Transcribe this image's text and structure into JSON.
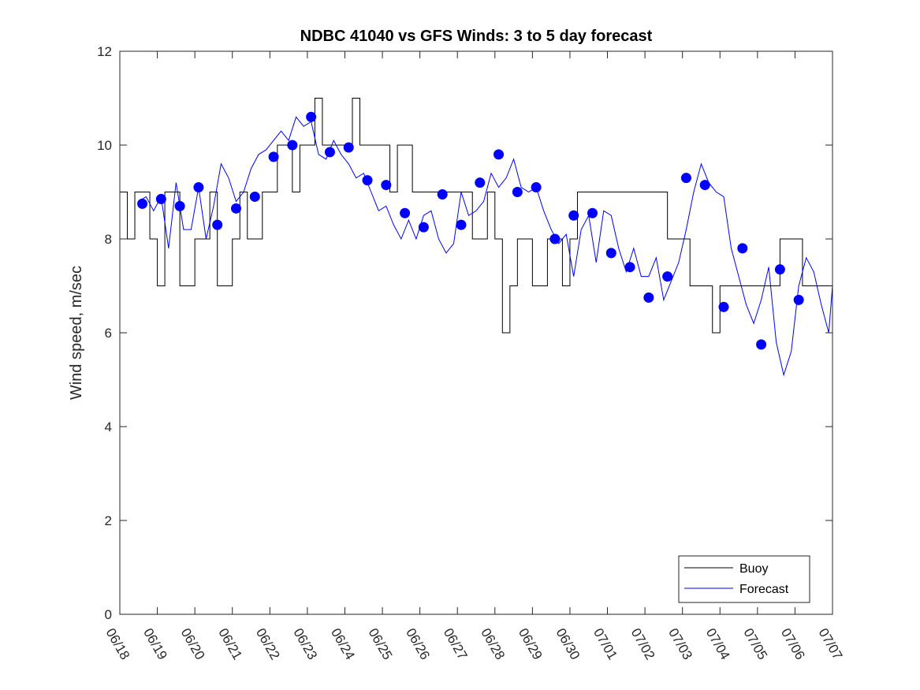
{
  "chart_data": {
    "type": "line",
    "title": "NDBC 41040 vs GFS Winds: 3 to 5 day forecast",
    "xlabel": "",
    "ylabel": "Wind speed, m/sec",
    "x_units": "date (MM/DD)",
    "xlim": [
      "06/18",
      "07/07"
    ],
    "ylim": [
      0,
      12
    ],
    "x_ticks": [
      "06/18",
      "06/19",
      "06/20",
      "06/21",
      "06/22",
      "06/23",
      "06/24",
      "06/25",
      "06/26",
      "06/27",
      "06/28",
      "06/29",
      "06/30",
      "07/01",
      "07/02",
      "07/03",
      "07/04",
      "07/05",
      "07/06",
      "07/07"
    ],
    "y_ticks": [
      "0",
      "2",
      "4",
      "6",
      "8",
      "10",
      "12"
    ],
    "legend": {
      "placement": "bottom-right",
      "entries": [
        "Buoy",
        "Forecast"
      ]
    },
    "grid": false,
    "colors": {
      "buoy": "#000000",
      "forecast": "#0000ff",
      "markers": "#0000ff"
    },
    "series": [
      {
        "name": "Buoy",
        "style": "step, 1 m/s resolution",
        "points": [
          [
            0.0,
            9
          ],
          [
            0.2,
            8
          ],
          [
            0.4,
            9
          ],
          [
            0.6,
            9
          ],
          [
            0.8,
            8
          ],
          [
            1.0,
            7
          ],
          [
            1.2,
            9
          ],
          [
            1.4,
            9
          ],
          [
            1.6,
            7
          ],
          [
            1.8,
            7
          ],
          [
            2.0,
            8
          ],
          [
            2.2,
            8
          ],
          [
            2.4,
            9
          ],
          [
            2.6,
            7
          ],
          [
            2.8,
            7
          ],
          [
            3.0,
            8
          ],
          [
            3.2,
            9
          ],
          [
            3.4,
            8
          ],
          [
            3.6,
            8
          ],
          [
            3.8,
            9
          ],
          [
            4.0,
            9
          ],
          [
            4.2,
            10
          ],
          [
            4.4,
            10
          ],
          [
            4.6,
            9
          ],
          [
            4.8,
            10
          ],
          [
            5.0,
            10
          ],
          [
            5.2,
            11
          ],
          [
            5.4,
            10
          ],
          [
            5.6,
            10
          ],
          [
            5.8,
            10
          ],
          [
            6.0,
            10
          ],
          [
            6.2,
            11
          ],
          [
            6.4,
            10
          ],
          [
            6.6,
            10
          ],
          [
            6.8,
            10
          ],
          [
            7.0,
            10
          ],
          [
            7.2,
            9
          ],
          [
            7.4,
            10
          ],
          [
            7.6,
            10
          ],
          [
            7.8,
            9
          ],
          [
            8.0,
            9
          ],
          [
            8.2,
            9
          ],
          [
            8.4,
            9
          ],
          [
            8.6,
            9
          ],
          [
            8.8,
            9
          ],
          [
            9.0,
            9
          ],
          [
            9.2,
            9
          ],
          [
            9.4,
            8
          ],
          [
            9.6,
            8
          ],
          [
            9.8,
            9
          ],
          [
            10.0,
            8
          ],
          [
            10.2,
            6
          ],
          [
            10.4,
            7
          ],
          [
            10.6,
            8
          ],
          [
            10.8,
            8
          ],
          [
            11.0,
            7
          ],
          [
            11.2,
            7
          ],
          [
            11.4,
            8
          ],
          [
            11.6,
            8
          ],
          [
            11.8,
            7
          ],
          [
            12.0,
            8
          ],
          [
            12.2,
            9
          ],
          [
            12.4,
            9
          ],
          [
            12.6,
            9
          ],
          [
            12.8,
            9
          ],
          [
            13.0,
            9
          ],
          [
            13.2,
            9
          ],
          [
            13.4,
            9
          ],
          [
            13.6,
            9
          ],
          [
            13.8,
            9
          ],
          [
            14.0,
            9
          ],
          [
            14.2,
            9
          ],
          [
            14.4,
            9
          ],
          [
            14.6,
            8
          ],
          [
            14.8,
            8
          ],
          [
            15.0,
            8
          ],
          [
            15.2,
            7
          ],
          [
            15.4,
            7
          ],
          [
            15.6,
            7
          ],
          [
            15.8,
            6
          ],
          [
            16.0,
            7
          ],
          [
            16.2,
            7
          ],
          [
            16.4,
            7
          ],
          [
            16.6,
            7
          ],
          [
            16.8,
            7
          ],
          [
            17.0,
            7
          ],
          [
            17.2,
            7
          ],
          [
            17.4,
            7
          ],
          [
            17.6,
            8
          ],
          [
            17.8,
            8
          ],
          [
            18.0,
            8
          ],
          [
            18.2,
            7
          ],
          [
            18.4,
            7
          ],
          [
            18.6,
            7
          ],
          [
            18.8,
            7
          ],
          [
            19.0,
            6
          ]
        ]
      },
      {
        "name": "Forecast",
        "style": "several thin overlapping runs",
        "points": [
          [
            0.5,
            8.8
          ],
          [
            0.7,
            8.9
          ],
          [
            0.9,
            8.6
          ],
          [
            1.1,
            8.9
          ],
          [
            1.3,
            7.8
          ],
          [
            1.5,
            9.2
          ],
          [
            1.7,
            8.2
          ],
          [
            1.9,
            8.2
          ],
          [
            2.1,
            9.1
          ],
          [
            2.3,
            8.0
          ],
          [
            2.5,
            8.7
          ],
          [
            2.7,
            9.6
          ],
          [
            2.9,
            9.3
          ],
          [
            3.1,
            8.8
          ],
          [
            3.3,
            9.0
          ],
          [
            3.5,
            9.5
          ],
          [
            3.7,
            9.8
          ],
          [
            3.9,
            9.9
          ],
          [
            4.1,
            10.1
          ],
          [
            4.3,
            10.3
          ],
          [
            4.5,
            10.1
          ],
          [
            4.7,
            10.6
          ],
          [
            4.9,
            10.4
          ],
          [
            5.1,
            10.5
          ],
          [
            5.3,
            9.8
          ],
          [
            5.5,
            9.7
          ],
          [
            5.7,
            10.1
          ],
          [
            5.9,
            9.8
          ],
          [
            6.1,
            9.6
          ],
          [
            6.3,
            9.3
          ],
          [
            6.5,
            9.4
          ],
          [
            6.7,
            9.0
          ],
          [
            6.9,
            8.6
          ],
          [
            7.1,
            8.7
          ],
          [
            7.3,
            8.3
          ],
          [
            7.5,
            8.0
          ],
          [
            7.7,
            8.4
          ],
          [
            7.9,
            8.0
          ],
          [
            8.1,
            8.5
          ],
          [
            8.3,
            8.6
          ],
          [
            8.5,
            8.0
          ],
          [
            8.7,
            7.7
          ],
          [
            8.9,
            7.9
          ],
          [
            9.1,
            9.0
          ],
          [
            9.3,
            8.5
          ],
          [
            9.5,
            8.6
          ],
          [
            9.7,
            8.8
          ],
          [
            9.9,
            9.4
          ],
          [
            10.1,
            9.1
          ],
          [
            10.3,
            9.3
          ],
          [
            10.5,
            9.7
          ],
          [
            10.7,
            9.1
          ],
          [
            10.9,
            9.0
          ],
          [
            11.1,
            9.1
          ],
          [
            11.3,
            8.6
          ],
          [
            11.5,
            8.2
          ],
          [
            11.7,
            7.9
          ],
          [
            11.9,
            8.1
          ],
          [
            12.1,
            7.2
          ],
          [
            12.3,
            8.2
          ],
          [
            12.5,
            8.5
          ],
          [
            12.7,
            7.5
          ],
          [
            12.9,
            8.6
          ],
          [
            13.1,
            8.5
          ],
          [
            13.3,
            7.8
          ],
          [
            13.5,
            7.3
          ],
          [
            13.7,
            7.8
          ],
          [
            13.9,
            7.2
          ],
          [
            14.1,
            7.2
          ],
          [
            14.3,
            7.6
          ],
          [
            14.5,
            6.7
          ],
          [
            14.7,
            7.1
          ],
          [
            14.9,
            7.5
          ],
          [
            15.1,
            8.2
          ],
          [
            15.3,
            9.0
          ],
          [
            15.5,
            9.6
          ],
          [
            15.7,
            9.2
          ],
          [
            15.9,
            9.0
          ],
          [
            16.1,
            8.9
          ],
          [
            16.3,
            7.8
          ],
          [
            16.5,
            7.2
          ],
          [
            16.7,
            6.6
          ],
          [
            16.9,
            6.2
          ],
          [
            17.1,
            6.7
          ],
          [
            17.3,
            7.4
          ],
          [
            17.5,
            5.8
          ],
          [
            17.7,
            5.1
          ],
          [
            17.9,
            5.6
          ],
          [
            18.1,
            7.0
          ],
          [
            18.3,
            7.6
          ],
          [
            18.5,
            7.3
          ],
          [
            18.7,
            6.6
          ],
          [
            18.9,
            6.0
          ],
          [
            19.0,
            7.0
          ]
        ]
      },
      {
        "name": "",
        "style": "markers (large filled circles)",
        "points": [
          [
            0.6,
            8.75
          ],
          [
            1.1,
            8.85
          ],
          [
            1.6,
            8.7
          ],
          [
            2.1,
            9.1
          ],
          [
            2.6,
            8.3
          ],
          [
            3.1,
            8.65
          ],
          [
            3.6,
            8.9
          ],
          [
            4.1,
            9.75
          ],
          [
            4.6,
            10.0
          ],
          [
            5.1,
            10.6
          ],
          [
            5.6,
            9.85
          ],
          [
            6.1,
            9.95
          ],
          [
            6.6,
            9.25
          ],
          [
            7.1,
            9.15
          ],
          [
            7.6,
            8.55
          ],
          [
            8.1,
            8.25
          ],
          [
            8.6,
            8.95
          ],
          [
            9.1,
            8.3
          ],
          [
            9.6,
            9.2
          ],
          [
            10.1,
            9.8
          ],
          [
            10.6,
            9.0
          ],
          [
            11.1,
            9.1
          ],
          [
            11.6,
            8.0
          ],
          [
            12.1,
            8.5
          ],
          [
            12.6,
            8.55
          ],
          [
            13.1,
            7.7
          ],
          [
            13.6,
            7.4
          ],
          [
            14.1,
            6.75
          ],
          [
            14.6,
            7.2
          ],
          [
            15.1,
            9.3
          ],
          [
            15.6,
            9.15
          ],
          [
            16.1,
            6.55
          ],
          [
            16.6,
            7.8
          ],
          [
            17.1,
            5.75
          ],
          [
            17.6,
            7.35
          ],
          [
            18.1,
            6.7
          ]
        ]
      }
    ]
  }
}
